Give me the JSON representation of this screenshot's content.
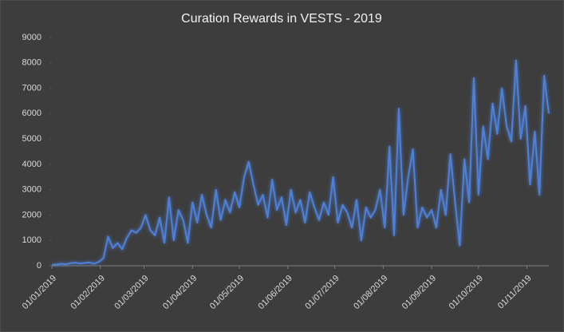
{
  "chart_data": {
    "type": "line",
    "title": "Curation Rewards in VESTS - 2019",
    "x": [
      "01/01/2019",
      "04/01/2019",
      "07/01/2019",
      "10/01/2019",
      "13/01/2019",
      "16/01/2019",
      "19/01/2019",
      "22/01/2019",
      "25/01/2019",
      "28/01/2019",
      "31/01/2019",
      "03/02/2019",
      "06/02/2019",
      "09/02/2019",
      "12/02/2019",
      "15/02/2019",
      "18/02/2019",
      "21/02/2019",
      "24/02/2019",
      "27/02/2019",
      "02/03/2019",
      "05/03/2019",
      "08/03/2019",
      "11/03/2019",
      "14/03/2019",
      "17/03/2019",
      "20/03/2019",
      "23/03/2019",
      "26/03/2019",
      "29/03/2019",
      "01/04/2019",
      "04/04/2019",
      "07/04/2019",
      "10/04/2019",
      "13/04/2019",
      "16/04/2019",
      "19/04/2019",
      "22/04/2019",
      "25/04/2019",
      "28/04/2019",
      "01/05/2019",
      "04/05/2019",
      "07/05/2019",
      "10/05/2019",
      "13/05/2019",
      "16/05/2019",
      "19/05/2019",
      "22/05/2019",
      "25/05/2019",
      "28/05/2019",
      "31/05/2019",
      "03/06/2019",
      "06/06/2019",
      "09/06/2019",
      "12/06/2019",
      "15/06/2019",
      "18/06/2019",
      "21/06/2019",
      "24/06/2019",
      "27/06/2019",
      "30/06/2019",
      "03/07/2019",
      "06/07/2019",
      "09/07/2019",
      "12/07/2019",
      "15/07/2019",
      "18/07/2019",
      "21/07/2019",
      "24/07/2019",
      "27/07/2019",
      "30/07/2019",
      "02/08/2019",
      "05/08/2019",
      "08/08/2019",
      "11/08/2019",
      "14/08/2019",
      "17/08/2019",
      "20/08/2019",
      "23/08/2019",
      "26/08/2019",
      "29/08/2019",
      "01/09/2019",
      "04/09/2019",
      "07/09/2019",
      "10/09/2019",
      "13/09/2019",
      "16/09/2019",
      "19/09/2019",
      "22/09/2019",
      "25/09/2019",
      "28/09/2019",
      "01/10/2019",
      "04/10/2019",
      "07/10/2019",
      "10/10/2019",
      "13/10/2019",
      "16/10/2019",
      "19/10/2019",
      "22/10/2019",
      "25/10/2019",
      "28/10/2019",
      "31/10/2019",
      "03/11/2019",
      "06/11/2019",
      "09/11/2019",
      "12/11/2019",
      "15/11/2019"
    ],
    "series": [
      {
        "name": "Curation Rewards",
        "color": "#4d80d9",
        "values": [
          30,
          50,
          80,
          60,
          100,
          120,
          90,
          110,
          130,
          80,
          150,
          300,
          1150,
          700,
          900,
          650,
          1100,
          1400,
          1300,
          1500,
          2000,
          1400,
          1200,
          1900,
          900,
          2700,
          1000,
          2200,
          1800,
          900,
          2500,
          1700,
          2800,
          2000,
          1500,
          3000,
          1800,
          2600,
          2100,
          2900,
          2300,
          3500,
          4100,
          3200,
          2400,
          2800,
          1900,
          3400,
          2200,
          2700,
          1600,
          3000,
          2100,
          2600,
          1700,
          2900,
          2300,
          1800,
          2500,
          2000,
          3500,
          1700,
          2400,
          2100,
          1500,
          2600,
          1000,
          2300,
          1900,
          2200,
          3000,
          1500,
          4700,
          1200,
          6200,
          2000,
          3500,
          4600,
          1500,
          2300,
          1900,
          2200,
          1500,
          3000,
          2000,
          4400,
          2500,
          800,
          4200,
          2500,
          7400,
          2800,
          5500,
          4200,
          6400,
          5200,
          7000,
          5500,
          4900,
          8100,
          5000,
          6300,
          3200,
          5300,
          2800,
          7500,
          6000
        ]
      }
    ],
    "xlim": [
      "01/01/2019",
      "15/11/2019"
    ],
    "xticks": [
      "01/01/2019",
      "01/02/2019",
      "01/03/2019",
      "01/04/2019",
      "01/05/2019",
      "01/06/2019",
      "01/07/2019",
      "01/08/2019",
      "01/09/2019",
      "01/10/2019",
      "01/11/2019"
    ],
    "ylim": [
      0,
      9000
    ],
    "yticks": [
      0,
      1000,
      2000,
      3000,
      4000,
      5000,
      6000,
      7000,
      8000,
      9000
    ],
    "grid": false
  }
}
